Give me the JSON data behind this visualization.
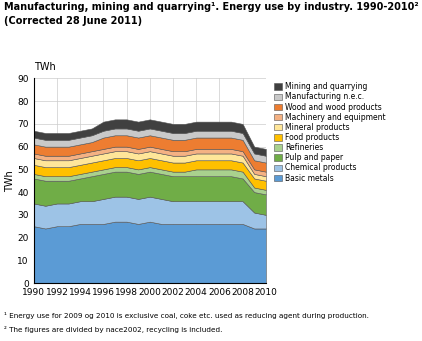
{
  "title_line1": "Manufacturing, mining and quarrying¹. Energy use by industry. 1990-2010²",
  "title_line2": "(Corrected 28 June 2011)",
  "ylabel": "TWh",
  "footnote1": "¹ Energy use for 2009 og 2010 is exclusive coal, coke etc. used as reducing agent during production.",
  "footnote2": "² The figures are divided by nace2002, recycling is included.",
  "years": [
    1990,
    1991,
    1992,
    1993,
    1994,
    1995,
    1996,
    1997,
    1998,
    1999,
    2000,
    2001,
    2002,
    2003,
    2004,
    2005,
    2006,
    2007,
    2008,
    2009,
    2010
  ],
  "series": {
    "Basic metals": [
      25,
      24,
      25,
      25,
      26,
      26,
      26,
      27,
      27,
      26,
      27,
      26,
      26,
      26,
      26,
      26,
      26,
      26,
      26,
      24,
      24
    ],
    "Chemical products": [
      10,
      10,
      10,
      10,
      10,
      10,
      11,
      11,
      11,
      11,
      11,
      11,
      10,
      10,
      10,
      10,
      10,
      10,
      10,
      7,
      6
    ],
    "Pulp and paper": [
      11,
      11,
      10,
      10,
      10,
      11,
      11,
      11,
      11,
      11,
      11,
      11,
      11,
      11,
      11,
      11,
      11,
      11,
      10,
      9,
      9
    ],
    "Refineries": [
      2,
      2,
      2,
      2,
      2,
      2,
      2,
      2,
      2,
      2,
      2,
      2,
      2,
      2,
      3,
      3,
      3,
      3,
      3,
      2,
      2
    ],
    "Food products": [
      4,
      4,
      4,
      4,
      4,
      4,
      4,
      4,
      4,
      4,
      4,
      4,
      4,
      4,
      4,
      4,
      4,
      4,
      4,
      4,
      4
    ],
    "Mineral products": [
      3,
      3,
      3,
      3,
      3,
      3,
      3,
      3,
      3,
      3,
      3,
      3,
      3,
      3,
      3,
      3,
      3,
      3,
      3,
      2,
      2
    ],
    "Machinery and equipment": [
      2,
      2,
      2,
      2,
      2,
      2,
      2,
      2,
      2,
      2,
      2,
      2,
      2,
      2,
      2,
      2,
      2,
      2,
      2,
      2,
      2
    ],
    "Wood and wood products": [
      4,
      4,
      4,
      4,
      4,
      4,
      5,
      5,
      5,
      5,
      5,
      5,
      5,
      5,
      5,
      5,
      5,
      5,
      5,
      4,
      4
    ],
    "Manufacturing n.e.c.": [
      3,
      3,
      3,
      3,
      3,
      3,
      3,
      3,
      3,
      3,
      3,
      3,
      3,
      3,
      3,
      3,
      3,
      3,
      3,
      3,
      3
    ],
    "Mining and quarrying": [
      3,
      3,
      3,
      3,
      3,
      3,
      4,
      4,
      4,
      4,
      4,
      4,
      4,
      4,
      4,
      4,
      4,
      4,
      4,
      3,
      3
    ]
  },
  "colors": {
    "Basic metals": "#5b9bd5",
    "Chemical products": "#9dc3e6",
    "Pulp and paper": "#70ad47",
    "Refineries": "#a9d18e",
    "Food products": "#ffc000",
    "Mineral products": "#ffe699",
    "Machinery and equipment": "#f4b183",
    "Wood and wood products": "#ed7d31",
    "Manufacturing n.e.c.": "#c9c9c9",
    "Mining and quarrying": "#404040"
  },
  "ylim": [
    0,
    90
  ],
  "yticks": [
    0,
    10,
    20,
    30,
    40,
    50,
    60,
    70,
    80,
    90
  ],
  "xtick_years": [
    1990,
    1992,
    1994,
    1996,
    1998,
    2000,
    2002,
    2004,
    2006,
    2008,
    2010
  ]
}
